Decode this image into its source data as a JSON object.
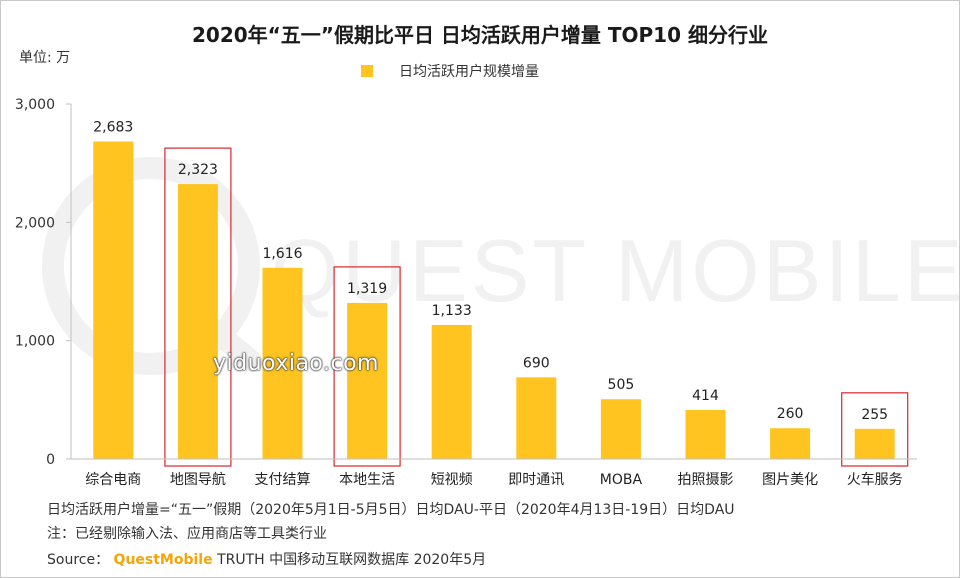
{
  "title": "2020年“五一”假期比平日 日均活跃用户增量 TOP10 细分行业",
  "unit_label": "单位: 万",
  "legend_label": "日均活跃用户规模增量",
  "watermark_text": "QUEST MOBILE",
  "site_watermark": "yiduoxiao.com",
  "footnotes": [
    "日均活跃用户增量=“五一”假期（2020年5月1日-5月5日）日均DAU-平日（2020年4月13日-19日）日均DAU",
    "注：已经剔除输入法、应用商店等工具类行业"
  ],
  "source": {
    "prefix": "Source：",
    "brand": "QuestMobile",
    "suffix": " TRUTH 中国移动互联网数据库 2020年5月"
  },
  "colors": {
    "bar": "#FFC41F",
    "highlight_box": "#D9262E",
    "axis": "#BFBFBF",
    "watermark": "#F1F1F1"
  },
  "chart_data": {
    "type": "bar",
    "title": "2020年“五一”假期比平日 日均活跃用户增量 TOP10 细分行业",
    "ylabel": "单位: 万",
    "ylim": [
      0,
      3000
    ],
    "yticks": [
      0,
      1000,
      2000,
      3000
    ],
    "ytick_labels": [
      "0",
      "1,000",
      "2,000",
      "3,000"
    ],
    "grid": false,
    "legend_position": "top-center",
    "categories": [
      "综合电商",
      "地图导航",
      "支付结算",
      "本地生活",
      "短视频",
      "即时通讯",
      "MOBA",
      "拍照摄影",
      "图片美化",
      "火车服务"
    ],
    "series": [
      {
        "name": "日均活跃用户规模增量",
        "values": [
          2683,
          2323,
          1616,
          1319,
          1133,
          690,
          505,
          414,
          260,
          255
        ],
        "labels": [
          "2,683",
          "2,323",
          "1,616",
          "1,319",
          "1,133",
          "690",
          "505",
          "414",
          "260",
          "255"
        ]
      }
    ],
    "highlighted_categories": [
      "地图导航",
      "本地生活",
      "火车服务"
    ]
  }
}
